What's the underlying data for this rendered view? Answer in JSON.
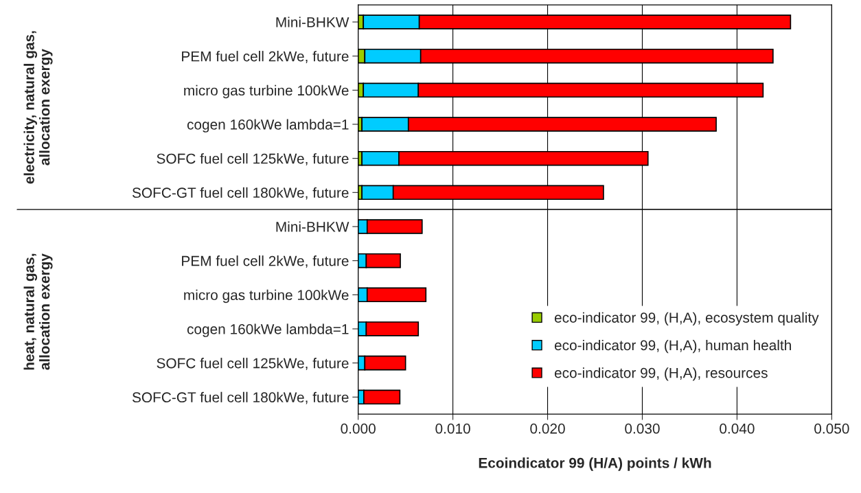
{
  "chart_data": [
    {
      "type": "bar",
      "orientation": "horizontal",
      "stacked": true,
      "categories": [
        "Mini-BHKW",
        "PEM fuel cell 2kWe, future",
        "micro gas turbine 100kWe",
        "cogen 160kWe lambda=1",
        "SOFC fuel cell 125kWe, future",
        "SOFC-GT fuel cell 180kWe, future"
      ],
      "series": [
        {
          "color": "#99cc00",
          "values": [
            0.00055,
            0.0007,
            0.00055,
            0.0004,
            0.0004,
            0.0004
          ]
        },
        {
          "color": "#00ccff",
          "values": [
            0.0059,
            0.0059,
            0.0058,
            0.0049,
            0.0039,
            0.0033
          ]
        },
        {
          "color": "#ff0000",
          "values": [
            0.0392,
            0.0372,
            0.0364,
            0.0325,
            0.0263,
            0.0222
          ]
        }
      ],
      "xlim": [
        0,
        0.05
      ],
      "xticks": [
        {
          "value": 0,
          "label": null
        },
        {
          "value": 0.01,
          "label": null
        },
        {
          "value": 0.02,
          "label": null
        },
        {
          "value": 0.03,
          "label": null
        },
        {
          "value": 0.04,
          "label": null
        },
        {
          "value": 0.05,
          "label": null
        }
      ],
      "tick_labels": "y",
      "annotations": [
        "electricity, natural gas,\nallocation exergy"
      ],
      "grid": "x"
    },
    {
      "type": "bar",
      "orientation": "horizontal",
      "stacked": true,
      "categories": [
        "Mini-BHKW",
        "PEM fuel cell 2kWe, future",
        "micro gas turbine 100kWe",
        "cogen 160kWe lambda=1",
        "SOFC fuel cell 125kWe, future",
        "SOFC-GT fuel cell 180kWe, future"
      ],
      "series": [
        {
          "name": "eco-indicator 99, (H,A), ecosystem quality",
          "color": "#99cc00",
          "values": [
            null,
            null,
            null,
            null,
            null,
            null
          ]
        },
        {
          "name": "eco-indicator 99, (H,A), human health",
          "color": "#00ccff",
          "values": [
            0.00095,
            0.00085,
            0.00095,
            0.00085,
            0.0007,
            0.0006
          ]
        },
        {
          "name": "eco-indicator 99, (H,A), resources",
          "color": "#ff0000",
          "values": [
            0.0058,
            0.0036,
            0.0062,
            0.0055,
            0.0043,
            0.0038
          ]
        }
      ],
      "xlabel": "Ecoindicator 99 (H/A) points / kWh",
      "xlim": [
        0,
        0.05
      ],
      "xticks": [
        {
          "value": 0,
          "label": "0.000"
        },
        {
          "value": 0.01,
          "label": "0.010"
        },
        {
          "value": 0.02,
          "label": "0.020"
        },
        {
          "value": 0.03,
          "label": "0.030"
        },
        {
          "value": 0.04,
          "label": "0.040"
        },
        {
          "value": 0.05,
          "label": "0.050"
        }
      ],
      "annotations": [
        "heat, natural gas,\nallocation exergy"
      ],
      "grid": "x",
      "legend": "bottom right"
    }
  ]
}
